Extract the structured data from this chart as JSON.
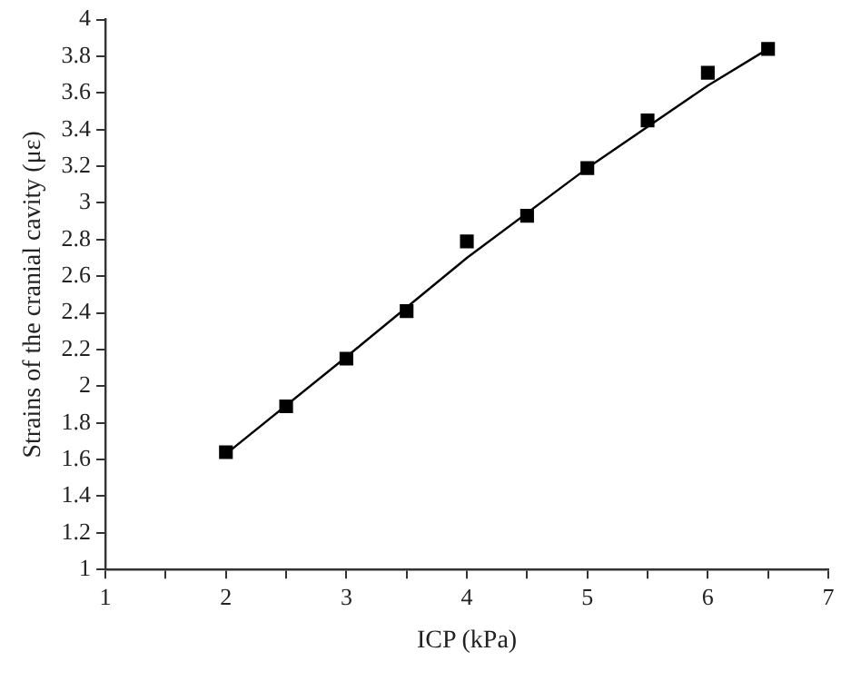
{
  "chart_data": {
    "type": "scatter",
    "xlabel": "ICP (kPa)",
    "ylabel": "Strains of the cranial cavity (με)",
    "x": [
      2,
      2.5,
      3,
      3.5,
      4,
      4.5,
      5,
      5.5,
      6,
      6.5
    ],
    "series": [
      {
        "color": "#000000",
        "marker": "square",
        "values": [
          1.64,
          1.89,
          2.15,
          2.41,
          2.79,
          2.93,
          3.19,
          3.45,
          3.71,
          3.84
        ]
      },
      {
        "type": "line",
        "color": "#000000",
        "marker": "none",
        "line_style": "solid",
        "x": [
          2,
          3,
          4,
          5,
          6,
          6.5
        ],
        "values": [
          1.63,
          2.16,
          2.7,
          3.19,
          3.64,
          3.84
        ]
      }
    ],
    "xlim": [
      1,
      7
    ],
    "ylim": [
      1,
      4
    ],
    "xticks": [
      1,
      {
        "value": 1.5,
        "label": null
      },
      2,
      {
        "value": 2.5,
        "label": null
      },
      3,
      {
        "value": 3.5,
        "label": null
      },
      4,
      {
        "value": 4.5,
        "label": null
      },
      5,
      {
        "value": 5.5,
        "label": null
      },
      6,
      {
        "value": 6.5,
        "label": null
      },
      7
    ],
    "yticks": [
      1,
      1.2,
      1.4,
      1.6,
      1.8,
      2,
      2.2,
      2.4,
      2.6,
      2.8,
      3,
      3.2,
      3.4,
      3.6,
      3.8,
      4
    ],
    "grid": false,
    "legend": false
  }
}
